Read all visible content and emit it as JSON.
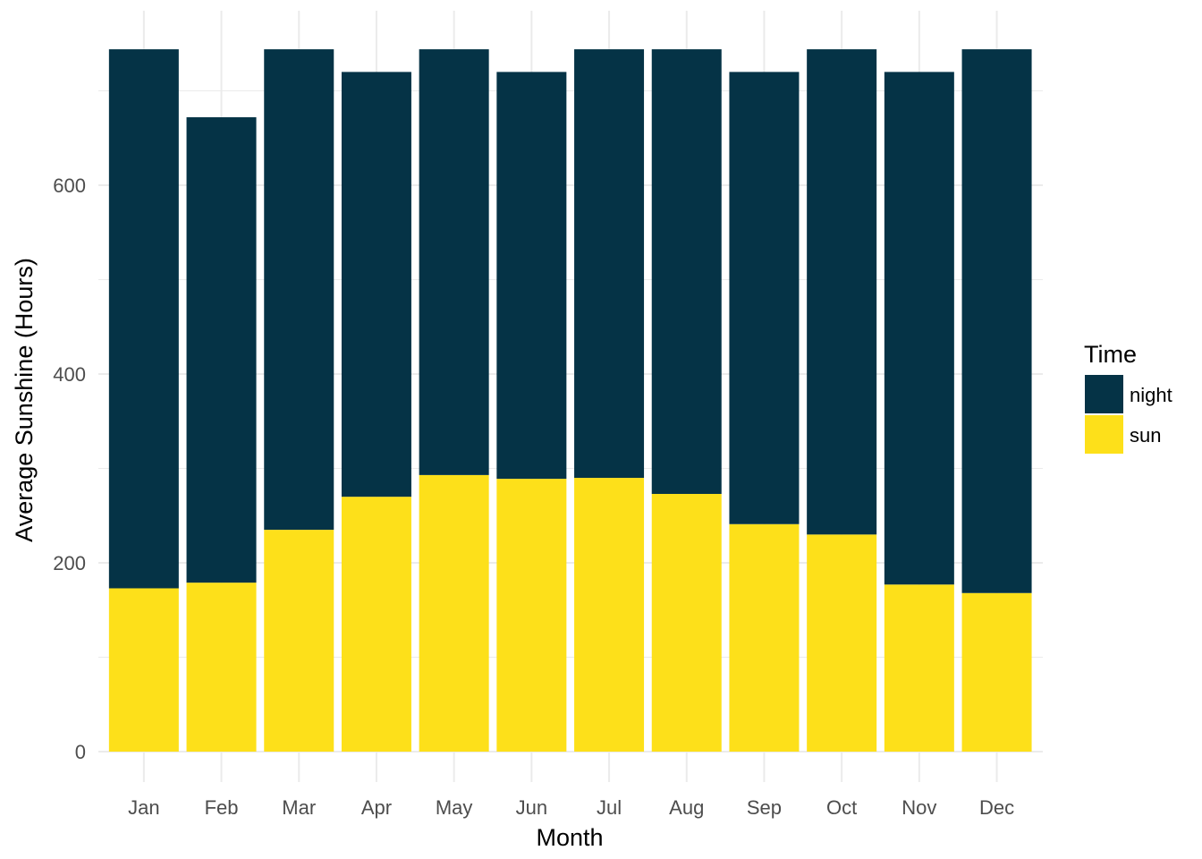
{
  "chart_data": {
    "type": "bar",
    "stacked": true,
    "categories": [
      "Jan",
      "Feb",
      "Mar",
      "Apr",
      "May",
      "Jun",
      "Jul",
      "Aug",
      "Sep",
      "Oct",
      "Nov",
      "Dec"
    ],
    "series": [
      {
        "name": "sun",
        "color": "#FDE01A",
        "values": [
          173,
          179,
          235,
          270,
          293,
          289,
          290,
          273,
          241,
          230,
          177,
          168
        ]
      },
      {
        "name": "night",
        "color": "#053346",
        "values": [
          571,
          493,
          509,
          450,
          451,
          431,
          454,
          471,
          479,
          514,
          543,
          576
        ]
      }
    ],
    "title": "",
    "xlabel": "Month",
    "ylabel": "Average Sunshine (Hours)",
    "ylim": [
      0,
      790
    ],
    "yticks": [
      0,
      200,
      400,
      600
    ],
    "grid": true,
    "legend": {
      "title": "Time",
      "placement": "right",
      "order": [
        "night",
        "sun"
      ]
    }
  }
}
